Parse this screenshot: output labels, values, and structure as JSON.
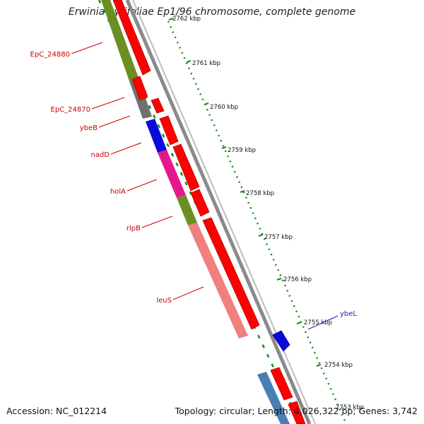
{
  "title": "Erwinia pyrifoliae Ep1/96 chromosome, complete genome",
  "footer": {
    "accession": "Accession: NC_012214",
    "topology": "Topology: circular; Length: 4,026,322 bp; Genes: 3,742"
  },
  "colors": {
    "backbone": "#808080",
    "cds_forward": "#ff0000",
    "scale_ticks": "#1a8a1a",
    "label_red": "#cc0000",
    "label_blue": "#1a1acc"
  },
  "scale_labels": [
    "2762 kbp",
    "2761 kbp",
    "2760 kbp",
    "2759 kbp",
    "2758 kbp",
    "2757 kbp",
    "2756 kbp",
    "2755 kbp",
    "2754 kbp",
    "2753 kbp"
  ],
  "gene_labels": [
    "EpC_24880",
    "EpC_24870",
    "ybeB",
    "nadD",
    "holA",
    "rlpB",
    "leuS",
    "ybeL"
  ]
}
